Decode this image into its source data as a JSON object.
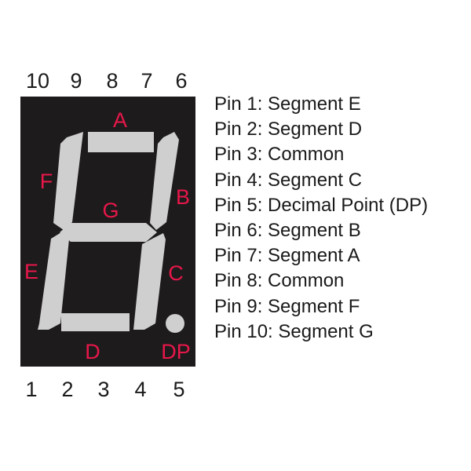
{
  "colors": {
    "body": "#1e1b1c",
    "segment": "#cfcfcf",
    "label": "#e8174a",
    "text": "#1a1a1a"
  },
  "top_pins": [
    "10",
    "9",
    "8",
    "7",
    "6"
  ],
  "bottom_pins": [
    "1",
    "2",
    "3",
    "4",
    "5"
  ],
  "segment_labels": {
    "a": "A",
    "b": "B",
    "c": "C",
    "d": "D",
    "e": "E",
    "f": "F",
    "g": "G",
    "dp": "DP"
  },
  "pin_map": [
    "Pin 1: Segment E",
    "Pin 2: Segment D",
    "Pin 3: Common",
    "Pin 4: Segment C",
    "Pin 5: Decimal Point (DP)",
    "Pin 6: Segment B",
    "Pin 7: Segment A",
    "Pin 8: Common",
    "Pin 9: Segment F",
    "Pin 10: Segment G"
  ]
}
